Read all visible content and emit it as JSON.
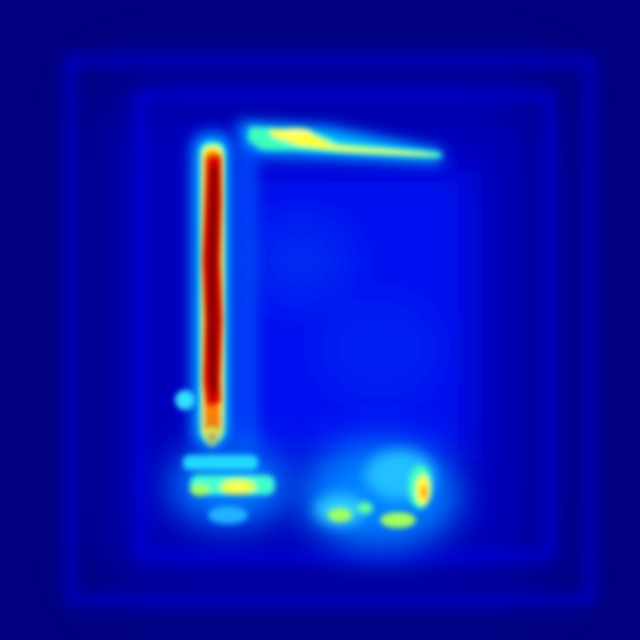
{
  "image": {
    "kind": "saliency-heatmap",
    "colormap": "jet",
    "colors": {
      "background": "#000080",
      "low": "#0000ff",
      "mid_low": "#00ffff",
      "mid": "#ffff00",
      "high": "#ff0000",
      "peak": "#800000"
    }
  }
}
